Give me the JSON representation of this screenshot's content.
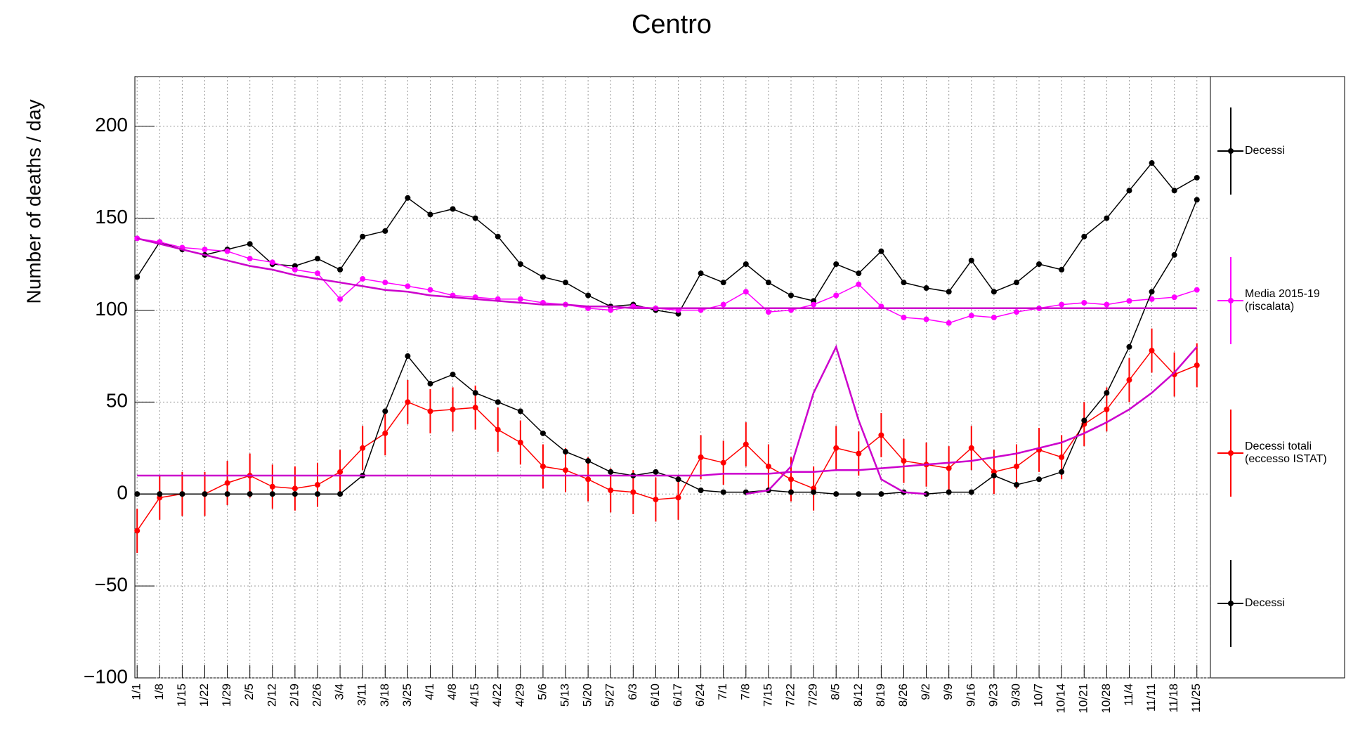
{
  "chart_data": {
    "type": "line",
    "title": "Centro",
    "y_label": "Number of deaths / day",
    "categories": [
      "1/1",
      "1/8",
      "1/15",
      "1/22",
      "1/29",
      "2/5",
      "2/12",
      "2/19",
      "2/26",
      "3/4",
      "3/11",
      "3/18",
      "3/25",
      "4/1",
      "4/8",
      "4/15",
      "4/22",
      "4/29",
      "5/6",
      "5/13",
      "5/20",
      "5/27",
      "6/3",
      "6/10",
      "6/17",
      "6/24",
      "7/1",
      "7/8",
      "7/15",
      "7/22",
      "7/29",
      "8/5",
      "8/12",
      "8/19",
      "8/26",
      "9/2",
      "9/9",
      "9/16",
      "9/23",
      "9/30",
      "10/7",
      "10/14",
      "10/21",
      "10/28",
      "11/4",
      "11/11",
      "11/18",
      "11/25"
    ],
    "ylim": [
      -100,
      227
    ],
    "yticks": [
      {
        "value": -100,
        "label": "−100"
      },
      {
        "value": -50,
        "label": "−50"
      },
      0,
      50,
      100,
      150,
      200
    ],
    "grid": true,
    "series": [
      {
        "name": "Decessi",
        "color": "#000000",
        "values": [
          118,
          137,
          133,
          130,
          133,
          136,
          125,
          124,
          128,
          122,
          140,
          143,
          161,
          152,
          155,
          150,
          140,
          125,
          118,
          115,
          108,
          102,
          103,
          100,
          98,
          120,
          115,
          125,
          115,
          108,
          105,
          125,
          120,
          132,
          115,
          112,
          110,
          127,
          110,
          115,
          125,
          122,
          140,
          150,
          165,
          180,
          165,
          172
        ]
      },
      {
        "name": "Media 2015-19 (riscalata)",
        "color": "#ff00ff",
        "values": [
          139,
          137,
          134,
          133,
          132,
          128,
          126,
          122,
          120,
          106,
          117,
          115,
          113,
          111,
          108,
          107,
          106,
          106,
          104,
          103,
          101,
          100,
          102,
          101,
          100,
          100,
          103,
          110,
          99,
          100,
          103,
          108,
          114,
          102,
          96,
          95,
          93,
          97,
          96,
          99,
          101,
          103,
          104,
          103,
          105,
          106,
          107,
          111
        ]
      },
      {
        "name": "Decessi totali (eccesso ISTAT)",
        "color": "#ff0000",
        "error": 12,
        "values": [
          -20,
          -2,
          0,
          0,
          6,
          10,
          4,
          3,
          5,
          12,
          25,
          33,
          50,
          45,
          46,
          47,
          35,
          28,
          15,
          13,
          8,
          2,
          1,
          -3,
          -2,
          20,
          17,
          27,
          15,
          8,
          3,
          25,
          22,
          32,
          18,
          16,
          14,
          25,
          12,
          15,
          24,
          20,
          38,
          46,
          62,
          78,
          65,
          70
        ]
      },
      {
        "name": "Decessi",
        "color": "#000000",
        "values": [
          0,
          0,
          0,
          0,
          0,
          0,
          0,
          0,
          0,
          0,
          10,
          45,
          75,
          60,
          65,
          55,
          50,
          45,
          33,
          23,
          18,
          12,
          10,
          12,
          8,
          2,
          1,
          1,
          2,
          1,
          1,
          0,
          0,
          0,
          1,
          0,
          1,
          1,
          10,
          5,
          8,
          12,
          40,
          55,
          80,
          110,
          130,
          160
        ]
      },
      {
        "color": "#cc00cc",
        "values": [
          139,
          136,
          133,
          130,
          127,
          124,
          122,
          119,
          117,
          115,
          113,
          111,
          110,
          108,
          107,
          106,
          105,
          104,
          103,
          103,
          102,
          102,
          101,
          101,
          101,
          101,
          101,
          101,
          101,
          101,
          101,
          101,
          101,
          101,
          101,
          101,
          101,
          101,
          101,
          101,
          101,
          101,
          101,
          101,
          101,
          101,
          101,
          101
        ]
      },
      {
        "color": "#cc00cc",
        "values": [
          10,
          10,
          10,
          10,
          10,
          10,
          10,
          10,
          10,
          10,
          10,
          10,
          10,
          10,
          10,
          10,
          10,
          10,
          10,
          10,
          10,
          10,
          10,
          10,
          10,
          10,
          11,
          11,
          11,
          12,
          12,
          13,
          13,
          14,
          15,
          16,
          17,
          18,
          20,
          22,
          25,
          28,
          33,
          39,
          46,
          55,
          66,
          80
        ]
      },
      {
        "color": "#cc00cc",
        "values": [
          null,
          null,
          null,
          null,
          null,
          null,
          null,
          null,
          null,
          null,
          null,
          null,
          null,
          null,
          null,
          null,
          null,
          null,
          null,
          null,
          null,
          null,
          null,
          null,
          null,
          null,
          null,
          0,
          2,
          15,
          55,
          80,
          40,
          8,
          1,
          0,
          null,
          null,
          null,
          null,
          null,
          null,
          null,
          null,
          null,
          null,
          null,
          null
        ]
      }
    ]
  }
}
